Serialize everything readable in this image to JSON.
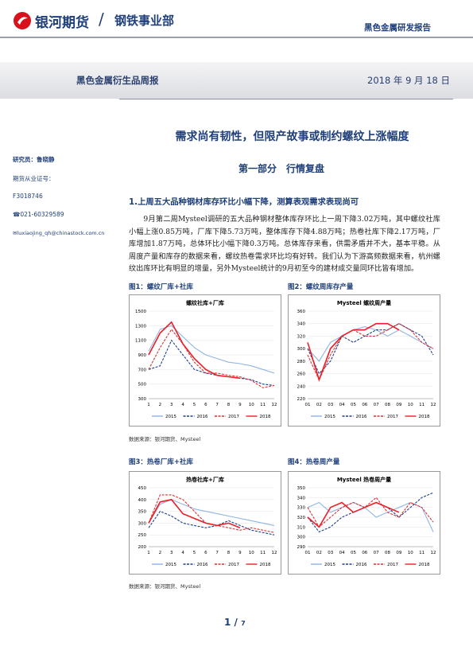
{
  "header": {
    "brand": "银河期货",
    "slash": "/",
    "dept": "钢铁事业部",
    "report": "黑色金属研发报告"
  },
  "banner": {
    "title": "黑色金属衍生品周报",
    "date": "2018 年 9 月 18 日"
  },
  "sidebar": {
    "analyst": "研究员：鲁晓静",
    "license_label": "期货从业证号：",
    "license": "F3018746",
    "phone": "☎021-60329589",
    "email": "✉luxiaojing_qh@chinastock.com.cn"
  },
  "main": {
    "title": "需求尚有韧性，但限产故事或制约螺纹上涨幅度",
    "section": "第一部分　行情复盘",
    "subsection": "1.上周五大品种钢材库存环比小幅下降，测算表观需求表现尚可",
    "paragraph": "9月第二周Mysteel调研的五大品种钢材整体库存环比上一周下降3.02万吨，其中螺纹社库小幅上涨0.85万吨，厂库下降5.73万吨，整体库存下降4.88万吨；热卷社库下降2.17万吨，厂库增加1.87万吨，总体环比小幅下降0.3万吨。总体库存来看，供需矛盾并不大，基本平稳。从周度产量和库存的数据来看，螺纹热卷需求环比均有好转。我们认为下游高频数据来看，杭州螺纹出库环比有明显的增量，另外Mysteel统计的9月初至今的建材成交量同环比皆有增加。"
  },
  "figures": [
    {
      "caption": "图1：螺纹厂库+社库"
    },
    {
      "caption": "图2：螺纹周库存产量"
    },
    {
      "caption": "图3：热卷厂库+社库"
    },
    {
      "caption": "图4：热卷周产量"
    }
  ],
  "sources": [
    "数据来源：银河期货、Mysteel",
    "数据来源：银河期货、Mysteel"
  ],
  "page": {
    "current": "1",
    "sep": "/",
    "total": "7"
  },
  "chart_data": [
    {
      "type": "line",
      "title": "螺纹社库+厂库",
      "categories": [
        "1",
        "2",
        "3",
        "4",
        "5",
        "6",
        "7",
        "8",
        "9",
        "10",
        "11",
        "12"
      ],
      "ylim": [
        300,
        1500
      ],
      "yticks": [
        300,
        500,
        700,
        900,
        1100,
        1300,
        1500
      ],
      "series": [
        {
          "name": "2015",
          "color": "#8fb4e3",
          "dash": false,
          "values": [
            950,
            1250,
            1300,
            1150,
            1000,
            900,
            850,
            800,
            780,
            750,
            700,
            650
          ]
        },
        {
          "name": "2016",
          "color": "#1f3f8f",
          "dash": true,
          "values": [
            700,
            750,
            1100,
            900,
            700,
            650,
            620,
            600,
            580,
            560,
            500,
            480
          ]
        },
        {
          "name": "2017",
          "color": "#e03030",
          "dash": true,
          "values": [
            700,
            1000,
            1250,
            1050,
            800,
            650,
            650,
            620,
            600,
            550,
            450,
            480
          ]
        },
        {
          "name": "2018",
          "color": "#ee1c25",
          "dash": false,
          "values": [
            900,
            1200,
            1350,
            1050,
            850,
            700,
            620,
            600,
            580,
            null,
            null,
            null
          ]
        }
      ]
    },
    {
      "type": "line",
      "title": "Mysteel 螺纹周产量",
      "categories": [
        "01",
        "02",
        "03",
        "04",
        "05",
        "06",
        "07",
        "08",
        "09",
        "10",
        "11",
        "12"
      ],
      "ylim": [
        220,
        360
      ],
      "yticks": [
        220,
        240,
        260,
        280,
        300,
        320,
        340,
        360
      ],
      "series": [
        {
          "name": "2015",
          "color": "#8fb4e3",
          "dash": false,
          "values": [
            300,
            280,
            310,
            320,
            330,
            335,
            330,
            320,
            330,
            320,
            310,
            300
          ]
        },
        {
          "name": "2016",
          "color": "#1f3f8f",
          "dash": true,
          "values": [
            300,
            260,
            280,
            320,
            310,
            320,
            330,
            330,
            340,
            330,
            320,
            290
          ]
        },
        {
          "name": "2017",
          "color": "#e03030",
          "dash": true,
          "values": [
            290,
            250,
            290,
            320,
            330,
            320,
            320,
            330,
            340,
            330,
            310,
            300
          ]
        },
        {
          "name": "2018",
          "color": "#ee1c25",
          "dash": false,
          "values": [
            310,
            250,
            300,
            320,
            330,
            330,
            340,
            340,
            330,
            null,
            null,
            null
          ]
        }
      ]
    },
    {
      "type": "line",
      "title": "热卷社库+厂库",
      "categories": [
        "1",
        "2",
        "3",
        "4",
        "5",
        "6",
        "7",
        "8",
        "9",
        "10",
        "11",
        "12"
      ],
      "ylim": [
        200,
        450
      ],
      "yticks": [
        200,
        250,
        300,
        350,
        400,
        450
      ],
      "series": [
        {
          "name": "2015",
          "color": "#8fb4e3",
          "dash": false,
          "values": [
            300,
            380,
            400,
            380,
            360,
            350,
            340,
            330,
            320,
            310,
            300,
            290
          ]
        },
        {
          "name": "2016",
          "color": "#1f3f8f",
          "dash": true,
          "values": [
            280,
            350,
            330,
            300,
            290,
            280,
            290,
            310,
            290,
            270,
            260,
            250
          ]
        },
        {
          "name": "2017",
          "color": "#e03030",
          "dash": true,
          "values": [
            300,
            420,
            420,
            400,
            350,
            300,
            290,
            280,
            270,
            280,
            270,
            260
          ]
        },
        {
          "name": "2018",
          "color": "#ee1c25",
          "dash": false,
          "values": [
            300,
            390,
            400,
            340,
            320,
            300,
            290,
            300,
            280,
            null,
            null,
            null
          ]
        }
      ]
    },
    {
      "type": "line",
      "title": "Mysteel 热卷周产量",
      "categories": [
        "01",
        "02",
        "03",
        "04",
        "05",
        "06",
        "07",
        "08",
        "09",
        "10",
        "11",
        "12"
      ],
      "ylim": [
        290,
        350
      ],
      "yticks": [
        290,
        300,
        310,
        320,
        330,
        340,
        350
      ],
      "series": [
        {
          "name": "2015",
          "color": "#8fb4e3",
          "dash": false,
          "values": [
            330,
            335,
            325,
            330,
            335,
            330,
            320,
            325,
            330,
            335,
            330,
            305
          ]
        },
        {
          "name": "2016",
          "color": "#1f3f8f",
          "dash": true,
          "values": [
            320,
            305,
            310,
            320,
            325,
            330,
            335,
            330,
            320,
            330,
            340,
            345
          ]
        },
        {
          "name": "2017",
          "color": "#e03030",
          "dash": true,
          "values": [
            330,
            310,
            320,
            330,
            335,
            330,
            340,
            325,
            320,
            335,
            330,
            315
          ]
        },
        {
          "name": "2018",
          "color": "#ee1c25",
          "dash": false,
          "values": [
            320,
            310,
            330,
            335,
            325,
            330,
            335,
            330,
            325,
            null,
            null,
            null
          ]
        }
      ]
    }
  ]
}
